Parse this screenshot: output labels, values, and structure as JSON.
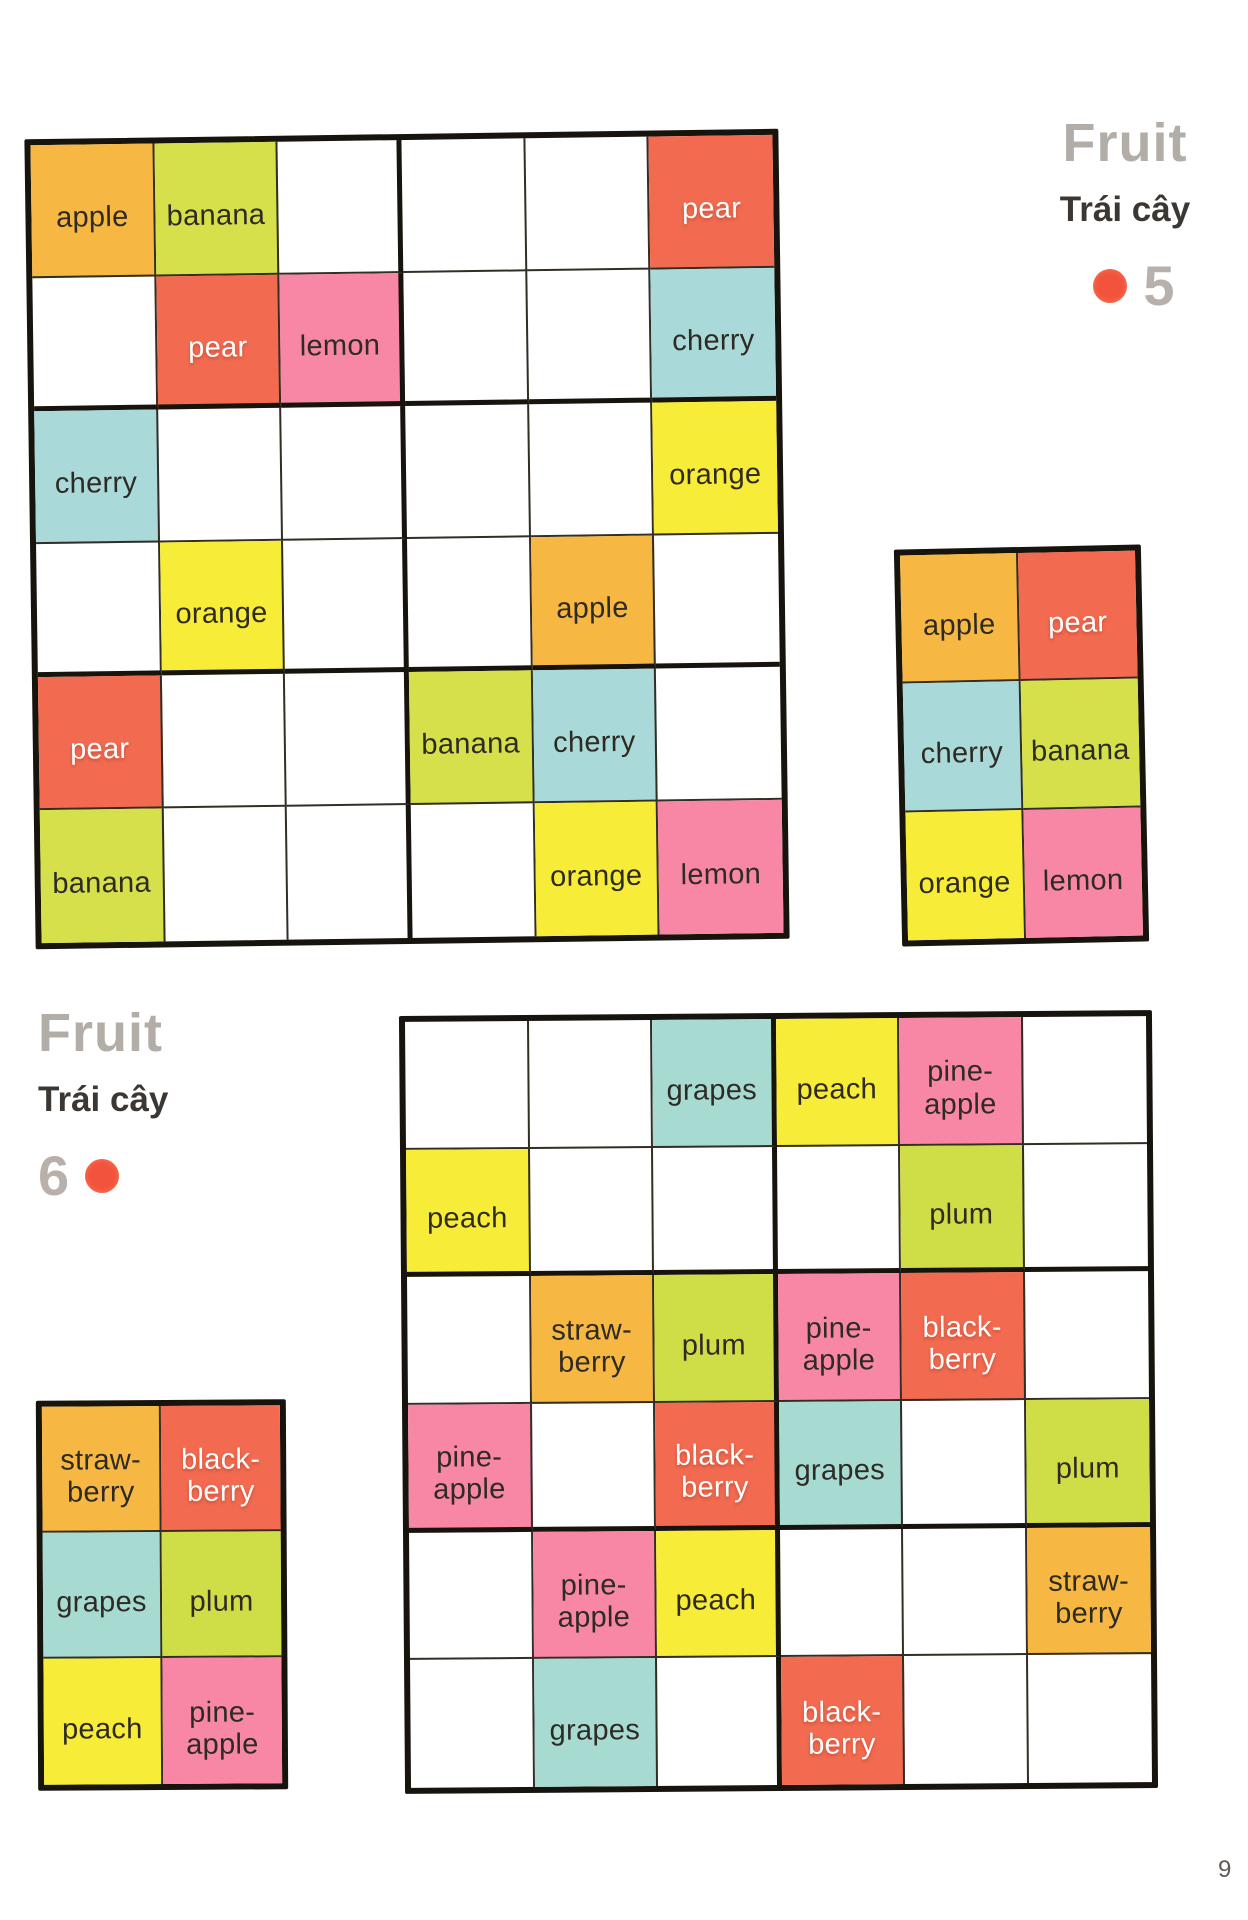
{
  "page": {
    "number": "9"
  },
  "fruits": {
    "apple": {
      "label": "apple",
      "color": "#F6B843",
      "text": "dark"
    },
    "banana": {
      "label": "banana",
      "color": "#D5E04B",
      "text": "dark"
    },
    "pear": {
      "label": "pear",
      "color": "#F26B50",
      "text": "white"
    },
    "lemon": {
      "label": "lemon",
      "color": "#F787A4",
      "text": "dark"
    },
    "cherry": {
      "label": "cherry",
      "color": "#A9D9D8",
      "text": "dark"
    },
    "orange": {
      "label": "orange",
      "color": "#F7EC38",
      "text": "dark"
    },
    "grapes": {
      "label": "grapes",
      "color": "#A7DBD2",
      "text": "dark"
    },
    "peach": {
      "label": "peach",
      "color": "#F7EC38",
      "text": "dark"
    },
    "pineapple": {
      "label": "pine-\napple",
      "color": "#F787A4",
      "text": "dark"
    },
    "plum": {
      "label": "plum",
      "color": "#CFDE46",
      "text": "dark"
    },
    "strawberry": {
      "label": "straw-\nberry",
      "color": "#F6B843",
      "text": "dark"
    },
    "blackberry": {
      "label": "black-\nberry",
      "color": "#F26B50",
      "text": "white"
    }
  },
  "puzzle5": {
    "title": "Fruit",
    "subtitle": "Trái cây",
    "number": "5",
    "grid": [
      [
        "apple",
        "banana",
        "",
        "",
        "",
        "pear"
      ],
      [
        "",
        "pear",
        "lemon",
        "",
        "",
        "cherry"
      ],
      [
        "cherry",
        "",
        "",
        "",
        "",
        "orange"
      ],
      [
        "",
        "orange",
        "",
        "",
        "apple",
        ""
      ],
      [
        "pear",
        "",
        "",
        "banana",
        "cherry",
        ""
      ],
      [
        "banana",
        "",
        "",
        "",
        "orange",
        "lemon"
      ]
    ],
    "key": [
      [
        "apple",
        "pear"
      ],
      [
        "cherry",
        "banana"
      ],
      [
        "orange",
        "lemon"
      ]
    ]
  },
  "puzzle6": {
    "title": "Fruit",
    "subtitle": "Trái cây",
    "number": "6",
    "grid": [
      [
        "",
        "",
        "grapes",
        "peach",
        "pineapple",
        ""
      ],
      [
        "peach",
        "",
        "",
        "",
        "plum",
        ""
      ],
      [
        "",
        "strawberry",
        "plum",
        "pineapple",
        "blackberry",
        ""
      ],
      [
        "pineapple",
        "",
        "blackberry",
        "grapes",
        "",
        "plum"
      ],
      [
        "",
        "pineapple",
        "peach",
        "",
        "",
        "strawberry"
      ],
      [
        "",
        "grapes",
        "",
        "blackberry",
        "",
        ""
      ]
    ],
    "key": [
      [
        "strawberry",
        "blackberry"
      ],
      [
        "grapes",
        "plum"
      ],
      [
        "peach",
        "pineapple"
      ]
    ]
  }
}
